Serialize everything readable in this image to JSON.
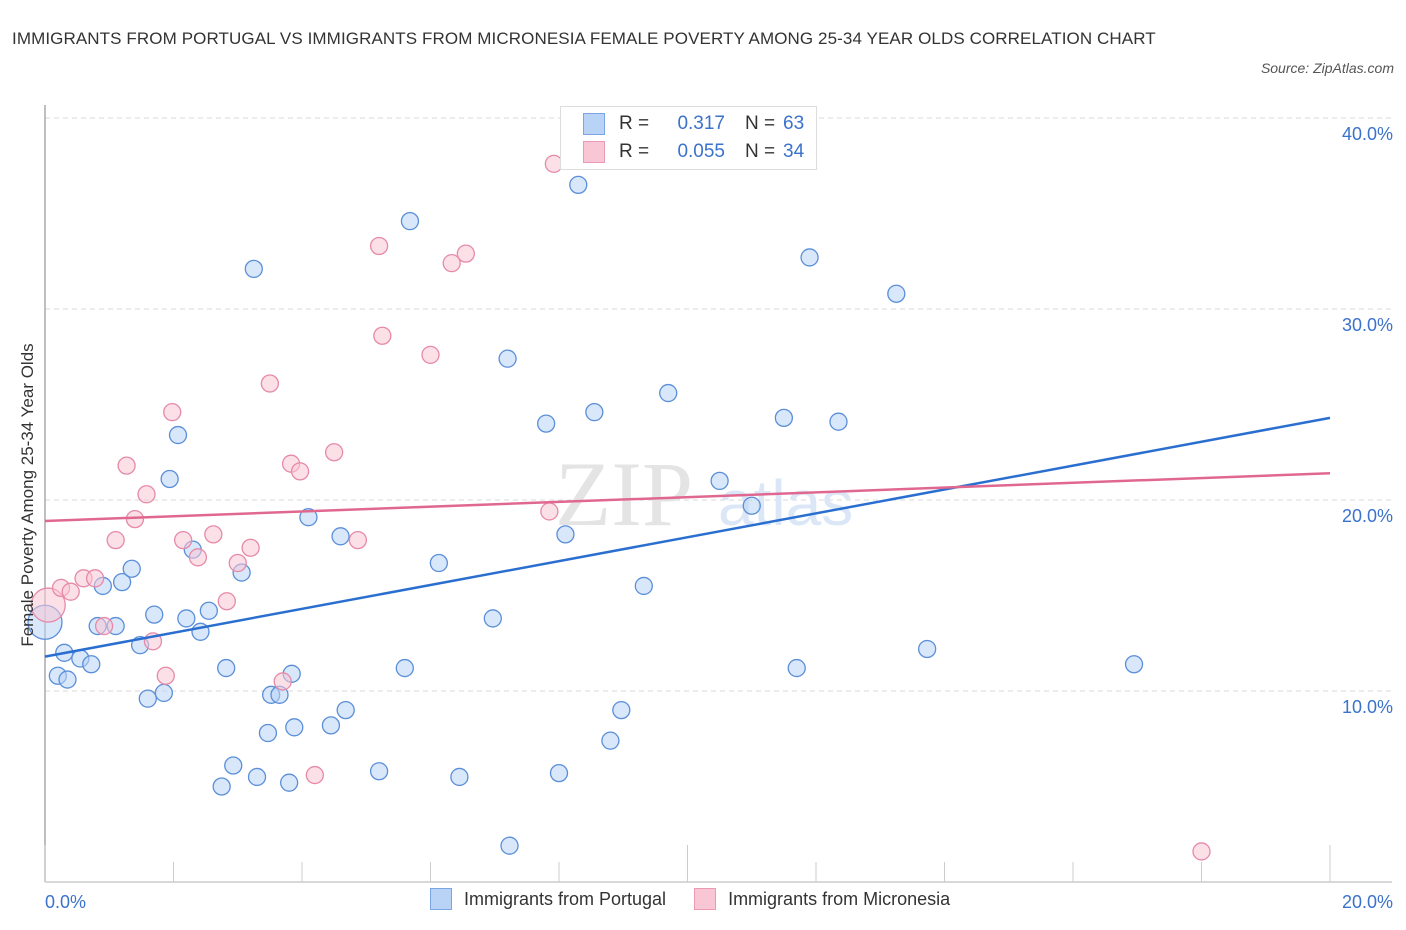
{
  "title": "IMMIGRANTS FROM PORTUGAL VS IMMIGRANTS FROM MICRONESIA FEMALE POVERTY AMONG 25-34 YEAR OLDS CORRELATION CHART",
  "source": "Source: ZipAtlas.com",
  "watermark": {
    "zip": "ZIP",
    "atlas": "atlas"
  },
  "legend": {
    "rows": [
      {
        "r_label": "R =",
        "r_value": "0.317",
        "n_label": "N =",
        "n_value": "63"
      },
      {
        "r_label": "R =",
        "r_value": "0.055",
        "n_label": "N =",
        "n_value": "34"
      }
    ]
  },
  "colors": {
    "portugal_fill": "#b8d3f5",
    "portugal_stroke": "#5b8fd9",
    "portugal_line": "#2a6fd0",
    "micronesia_fill": "#f9c6d6",
    "micronesia_stroke": "#e68aa8",
    "micronesia_line": "#e06890",
    "tick_text": "#3a72cc"
  },
  "chart_data": {
    "type": "scatter",
    "title": "IMMIGRANTS FROM PORTUGAL VS IMMIGRANTS FROM MICRONESIA FEMALE POVERTY AMONG 25-34 YEAR OLDS CORRELATION CHART",
    "xlabel": "",
    "ylabel": "Female Poverty Among 25-34 Year Olds",
    "xlim": [
      0,
      20
    ],
    "ylim": [
      0,
      40
    ],
    "x_tick_labels": [
      "0.0%",
      "20.0%"
    ],
    "y_ticks": [
      10,
      20,
      30,
      40
    ],
    "y_tick_labels": [
      "10.0%",
      "20.0%",
      "30.0%",
      "40.0%"
    ],
    "grid": true,
    "legend_position": "top-center",
    "series": [
      {
        "name": "Immigrants from Portugal",
        "R": 0.317,
        "N": 63,
        "trend": {
          "x": [
            0,
            20
          ],
          "y": [
            11.8,
            24.3
          ]
        },
        "points": [
          [
            0.0,
            13.6,
            "large"
          ],
          [
            0.2,
            10.8
          ],
          [
            0.35,
            10.6
          ],
          [
            0.3,
            12.0
          ],
          [
            0.55,
            11.7
          ],
          [
            0.72,
            11.4
          ],
          [
            0.82,
            13.4
          ],
          [
            1.1,
            13.4
          ],
          [
            0.9,
            15.5
          ],
          [
            1.2,
            15.7
          ],
          [
            1.35,
            16.4
          ],
          [
            1.48,
            12.4
          ],
          [
            1.7,
            14.0
          ],
          [
            1.6,
            9.6
          ],
          [
            1.85,
            9.9
          ],
          [
            1.94,
            21.1
          ],
          [
            2.07,
            23.4
          ],
          [
            2.2,
            13.8
          ],
          [
            2.3,
            17.4
          ],
          [
            2.42,
            13.1
          ],
          [
            2.55,
            14.2
          ],
          [
            2.82,
            11.2
          ],
          [
            2.75,
            5.0
          ],
          [
            2.93,
            6.1
          ],
          [
            3.06,
            16.2
          ],
          [
            3.25,
            32.1
          ],
          [
            3.3,
            5.5
          ],
          [
            3.47,
            7.8
          ],
          [
            3.52,
            9.8
          ],
          [
            3.65,
            9.8
          ],
          [
            3.8,
            5.2
          ],
          [
            3.88,
            8.1
          ],
          [
            3.84,
            10.9
          ],
          [
            4.1,
            19.1
          ],
          [
            4.45,
            8.2
          ],
          [
            4.6,
            18.1
          ],
          [
            4.68,
            9.0
          ],
          [
            5.2,
            5.8
          ],
          [
            5.6,
            11.2
          ],
          [
            5.68,
            34.6
          ],
          [
            6.13,
            16.7
          ],
          [
            6.45,
            5.5
          ],
          [
            6.97,
            13.8
          ],
          [
            7.2,
            27.4
          ],
          [
            7.8,
            24.0
          ],
          [
            8.0,
            5.7
          ],
          [
            8.1,
            18.2
          ],
          [
            8.3,
            36.5
          ],
          [
            8.55,
            24.6
          ],
          [
            8.8,
            7.4
          ],
          [
            8.97,
            9.0
          ],
          [
            9.32,
            15.5
          ],
          [
            9.7,
            25.6
          ],
          [
            10.5,
            21.0
          ],
          [
            11.0,
            19.7
          ],
          [
            11.5,
            24.3
          ],
          [
            11.7,
            11.2
          ],
          [
            11.9,
            32.7
          ],
          [
            12.35,
            24.1
          ],
          [
            13.25,
            30.8
          ],
          [
            13.73,
            12.2
          ],
          [
            16.95,
            11.4
          ],
          [
            7.23,
            1.9
          ]
        ]
      },
      {
        "name": "Immigrants from Micronesia",
        "R": 0.055,
        "N": 34,
        "trend": {
          "x": [
            0,
            20
          ],
          "y": [
            18.9,
            21.4
          ]
        },
        "points": [
          [
            0.05,
            14.5,
            "large"
          ],
          [
            0.25,
            15.4
          ],
          [
            0.4,
            15.2
          ],
          [
            0.6,
            15.9
          ],
          [
            0.78,
            15.9
          ],
          [
            0.92,
            13.4
          ],
          [
            1.1,
            17.9
          ],
          [
            1.27,
            21.8
          ],
          [
            1.4,
            19.0
          ],
          [
            1.58,
            20.3
          ],
          [
            1.68,
            12.6
          ],
          [
            1.88,
            10.8
          ],
          [
            1.98,
            24.6
          ],
          [
            2.15,
            17.9
          ],
          [
            2.38,
            17.0
          ],
          [
            2.62,
            18.2
          ],
          [
            2.83,
            14.7
          ],
          [
            3.0,
            16.7
          ],
          [
            3.2,
            17.5
          ],
          [
            3.5,
            26.1
          ],
          [
            3.7,
            10.5
          ],
          [
            3.83,
            21.9
          ],
          [
            3.97,
            21.5
          ],
          [
            4.2,
            5.6
          ],
          [
            4.5,
            22.5
          ],
          [
            4.87,
            17.9
          ],
          [
            5.2,
            33.3
          ],
          [
            5.25,
            28.6
          ],
          [
            6.0,
            27.6
          ],
          [
            6.33,
            32.4
          ],
          [
            6.55,
            32.9
          ],
          [
            7.85,
            19.4
          ],
          [
            7.92,
            37.6
          ],
          [
            18.0,
            1.6
          ]
        ]
      }
    ]
  },
  "bottom_legend": [
    "Immigrants from Portugal",
    "Immigrants from Micronesia"
  ]
}
